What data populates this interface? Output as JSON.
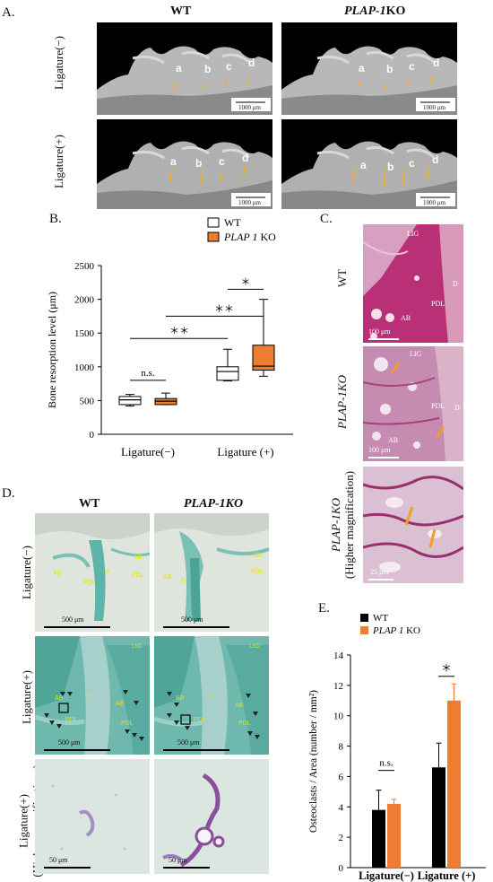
{
  "panelA": {
    "letter": "A.",
    "col_wt": "WT",
    "col_ko": "PLAP-1KO",
    "col_ko_gene": "PLAP-1",
    "col_ko_suffix": "KO",
    "row1": "Ligature(−)",
    "row2": "Ligature(+)",
    "teeth": [
      "a",
      "b",
      "c",
      "d"
    ],
    "scale": "1000 μm"
  },
  "panelB": {
    "letter": "B.",
    "legend_wt": "WT",
    "legend_ko_gene": "PLAP 1",
    "legend_ko_suffix": " KO",
    "ylabel": "Bone resorption level (μm)",
    "sig_ns": "n.s.",
    "sig_double": "＊＊",
    "sig_single": "＊"
  },
  "panelC": {
    "letter": "C.",
    "row1": "WT",
    "row2": "PLAP-1KO",
    "row3a": "PLAP-1KO",
    "row3b": "(Higher magnification)",
    "labels_wt": [
      "LIG",
      "D",
      "PDL",
      "AB"
    ],
    "labels_ko": [
      "LIG",
      "PDL",
      "D",
      "AB"
    ],
    "scale_100": "100 μm",
    "scale_25": "25 μm"
  },
  "panelD": {
    "letter": "D.",
    "col_wt": "WT",
    "col_ko": "PLAP-1KO",
    "row1": "Ligature(−)",
    "row2": "Ligature(+)",
    "row3a": "Ligature(+)",
    "row3b": "(Higher magnifications)",
    "labels": [
      "AB",
      "D",
      "PDL",
      "AB",
      "PDL",
      "LIG"
    ],
    "scale_500": "500 μm",
    "scale_50": "50 μm"
  },
  "panelE": {
    "letter": "E.",
    "legend_wt": "WT",
    "legend_ko_gene": "PLAP 1",
    "legend_ko_suffix": " KO",
    "ylabel": "Osteoclasts / Area (number / mm²)",
    "sig_ns": "n.s.",
    "sig_single": "＊"
  },
  "colors": {
    "wt": "#ffffff",
    "ko": "#ed7d31",
    "wt_bar": "#000000",
    "arrow": "#f0a020",
    "he_pink": "#c2337a",
    "trap_teal": "#49a9a0"
  },
  "chart_data": [
    {
      "type": "box",
      "title": "",
      "ylabel": "Bone resorption level (μm)",
      "xlabel": "",
      "categories": [
        "Ligature(−)",
        "Ligature (+)"
      ],
      "ylim": [
        0,
        2500
      ],
      "yticks": [
        0,
        500,
        1000,
        1500,
        2000,
        2500
      ],
      "series": [
        {
          "name": "WT",
          "boxes": [
            {
              "min": 420,
              "q1": 440,
              "median": 510,
              "q3": 560,
              "max": 590
            },
            {
              "min": 790,
              "q1": 800,
              "median": 930,
              "q3": 1000,
              "max": 1260
            }
          ]
        },
        {
          "name": "PLAP 1 KO",
          "boxes": [
            {
              "min": 440,
              "q1": 440,
              "median": 490,
              "q3": 530,
              "max": 610
            },
            {
              "min": 860,
              "q1": 950,
              "median": 1010,
              "q3": 1320,
              "max": 2000
            }
          ]
        }
      ]
    },
    {
      "type": "bar",
      "title": "",
      "ylabel": "Osteoclasts / Area (number / mm²)",
      "xlabel": "",
      "categories": [
        "Ligature(−)",
        "Ligature (+)"
      ],
      "ylim": [
        0,
        14
      ],
      "yticks": [
        0,
        2,
        4,
        6,
        8,
        10,
        12,
        14
      ],
      "series": [
        {
          "name": "WT",
          "values": [
            3.8,
            6.6
          ],
          "errors": [
            1.3,
            1.6
          ]
        },
        {
          "name": "PLAP 1 KO",
          "values": [
            4.2,
            11.0
          ],
          "errors": [
            0.3,
            1.1
          ]
        }
      ]
    }
  ]
}
